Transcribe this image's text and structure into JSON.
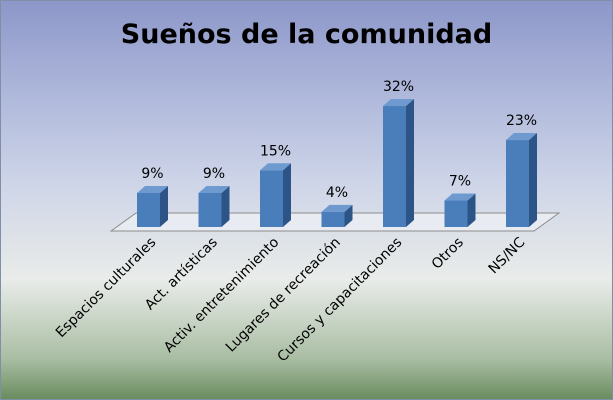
{
  "chart_data": {
    "type": "bar",
    "title": "Sueños de la comunidad",
    "categories": [
      "Espacios culturales",
      "Act. artísticas",
      "Activ. entretenimiento",
      "Lugares de recreación",
      "Cursos y capacitaciones",
      "Otros",
      "NS/NC"
    ],
    "values": [
      9,
      9,
      15,
      4,
      32,
      7,
      23
    ],
    "data_labels": [
      "9%",
      "9%",
      "15%",
      "4%",
      "32%",
      "7%",
      "23%"
    ],
    "unit": "%",
    "bar_color": "#4a7ebb",
    "grid": false,
    "legend": "none",
    "style": "3d"
  }
}
